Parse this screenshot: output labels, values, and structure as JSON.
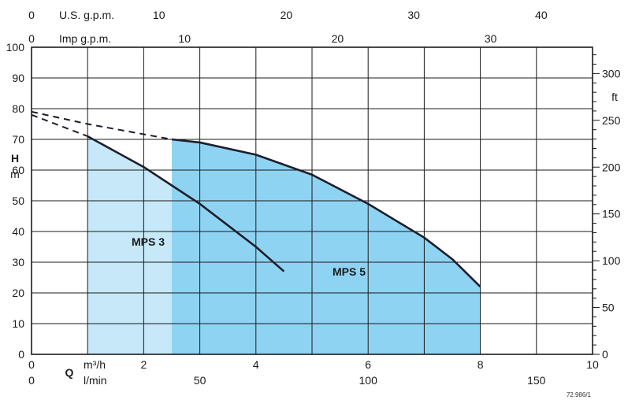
{
  "chart_data": {
    "type": "area",
    "title": "",
    "axes": {
      "x_primary": {
        "label": "Q",
        "unit_label": "m³/h",
        "range": [
          0,
          10
        ],
        "ticks": [
          0,
          2,
          4,
          6,
          8,
          10
        ]
      },
      "x_lmin": {
        "unit_label": "l/min",
        "ticks": [
          0,
          50,
          100,
          150
        ],
        "units_per_primary": 16.6667
      },
      "x_usgpm": {
        "unit_label": "U.S. g.p.m.",
        "ticks": [
          0,
          10,
          20,
          30,
          40
        ],
        "units_per_primary": 4.403
      },
      "x_impgpm": {
        "unit_label": "Imp g.p.m.",
        "ticks": [
          0,
          10,
          20,
          30
        ],
        "units_per_primary": 3.666
      },
      "y_primary": {
        "label": "H",
        "unit_label": "m",
        "range": [
          0,
          100
        ],
        "ticks": [
          0,
          10,
          20,
          30,
          40,
          50,
          60,
          70,
          80,
          90,
          100
        ]
      },
      "y_ft": {
        "unit_label": "ft",
        "ticks": [
          0,
          50,
          100,
          150,
          200,
          250,
          300
        ],
        "units_per_primary": 3.2808
      }
    },
    "grid": true,
    "series": [
      {
        "name": "MPS 3",
        "color": "#c6e8f8",
        "range": [
          1,
          4.5
        ],
        "x": [
          1,
          1.5,
          2,
          2.5,
          3,
          3.5,
          4,
          4.5
        ],
        "y": [
          71,
          66,
          61,
          55,
          49,
          42,
          35,
          27
        ],
        "dashed_extension": {
          "x": [
            0,
            1
          ],
          "y": [
            78,
            71
          ]
        }
      },
      {
        "name": "MPS 5",
        "color": "#8fd3f2",
        "range": [
          2.5,
          8
        ],
        "x": [
          2.5,
          3,
          4,
          5,
          6,
          7,
          7.5,
          8
        ],
        "y": [
          70,
          69,
          65,
          58.5,
          49,
          38,
          31,
          22
        ],
        "dashed_extension": {
          "x": [
            0,
            1,
            2.5
          ],
          "y": [
            79,
            75,
            70
          ]
        }
      }
    ],
    "annotations": [
      "MPS 3",
      "MPS 5"
    ],
    "code": "72.986/1"
  }
}
